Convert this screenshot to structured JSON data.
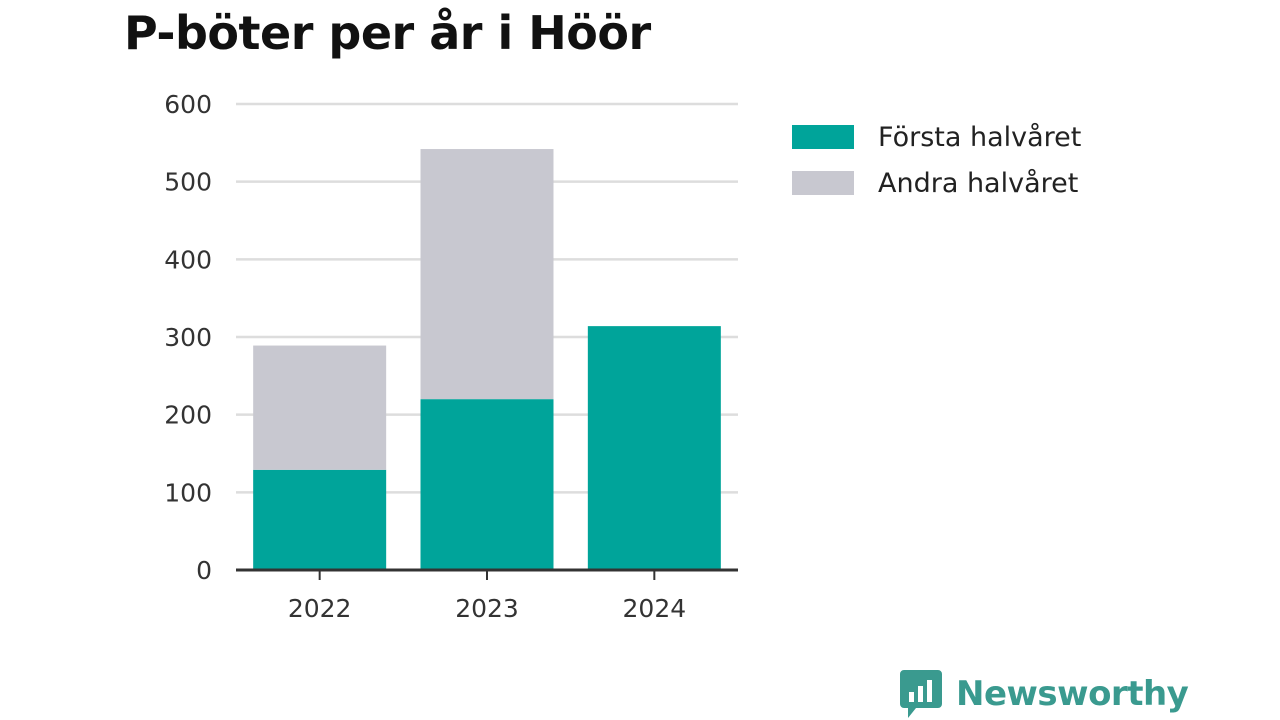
{
  "title": "P-böter per år i Höör",
  "colors": {
    "first_half": "#00a49a",
    "second_half": "#c8c8d0",
    "grid": "#dddddd",
    "axis": "#333333",
    "logo": "#3a9a8f"
  },
  "logo": {
    "text": "Newsworthy",
    "icon": "bar-chart-speech-bubble-icon"
  },
  "chart_data": {
    "type": "bar",
    "stacked": true,
    "title": "P-böter per år i Höör",
    "xlabel": "",
    "ylabel": "",
    "categories": [
      "2022",
      "2023",
      "2024"
    ],
    "series": [
      {
        "name": "Första halvåret",
        "values": [
          129,
          220,
          314
        ]
      },
      {
        "name": "Andra halvåret",
        "values": [
          160,
          322,
          0
        ]
      }
    ],
    "ylim": [
      0,
      600
    ],
    "yticks": [
      0,
      100,
      200,
      300,
      400,
      500,
      600
    ],
    "grid": true,
    "legend": "right"
  }
}
